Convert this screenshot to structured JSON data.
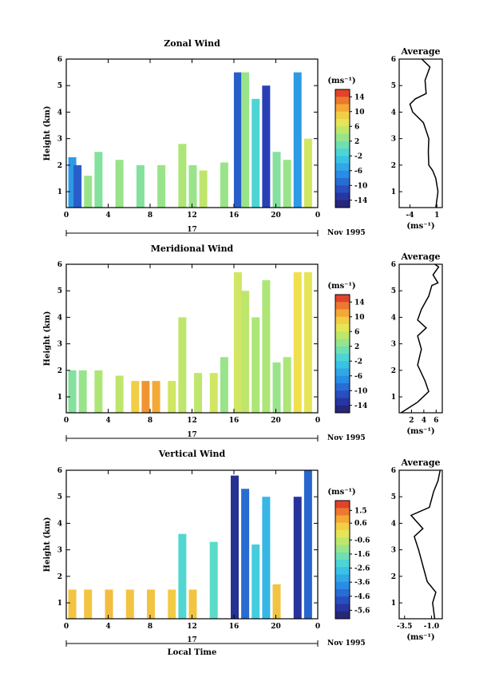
{
  "chart_data": [
    {
      "type": "heatmap",
      "title": "Zonal Wind",
      "ylabel": "Height (km)",
      "y_ticks": [
        "1",
        "2",
        "3",
        "4",
        "5",
        "6"
      ],
      "ylim": [
        0.4,
        6
      ],
      "x_ticks": [
        "0",
        "4",
        "8",
        "12",
        "16",
        "20",
        "0"
      ],
      "date_label": "17",
      "month_label": "Nov 1995",
      "colorbar": {
        "unit": "(ms⁻¹)",
        "ticks": [
          "14",
          "10",
          "6",
          "2",
          "-2",
          "-6",
          "-10",
          "-14"
        ],
        "range": [
          -16,
          16
        ]
      },
      "columns": [
        {
          "t": 0.5,
          "top": 2.3,
          "v": -6
        },
        {
          "t": 1.0,
          "top": 2.0,
          "v": -10
        },
        {
          "t": 2,
          "top": 1.6,
          "v": 3
        },
        {
          "t": 3,
          "top": 2.5,
          "v": 2
        },
        {
          "t": 5,
          "top": 2.2,
          "v": 3
        },
        {
          "t": 7,
          "top": 2.0,
          "v": 2
        },
        {
          "t": 9,
          "top": 2.0,
          "v": 3
        },
        {
          "t": 11,
          "top": 2.8,
          "v": 4
        },
        {
          "t": 12,
          "top": 2.0,
          "v": 3
        },
        {
          "t": 13,
          "top": 1.8,
          "v": 5
        },
        {
          "t": 15,
          "top": 2.1,
          "v": 3
        },
        {
          "t": 16.3,
          "top": 5.5,
          "v": -10
        },
        {
          "t": 17,
          "top": 5.5,
          "v": 3
        },
        {
          "t": 18,
          "top": 4.5,
          "v": -1
        },
        {
          "t": 19,
          "top": 5.0,
          "v": -12
        },
        {
          "t": 20,
          "top": 2.5,
          "v": 2
        },
        {
          "t": 21,
          "top": 2.2,
          "v": 3
        },
        {
          "t": 22,
          "top": 5.5,
          "v": -6
        },
        {
          "t": 23,
          "top": 3.0,
          "v": 6
        }
      ],
      "average_profile": {
        "title": "Average",
        "unit": "(ms⁻¹)",
        "x_ticks": [
          "-4",
          "1"
        ],
        "xlim": [
          -6,
          2
        ],
        "points": [
          [
            0.8,
            0.4
          ],
          [
            1.2,
            1.0
          ],
          [
            0.8,
            1.5
          ],
          [
            0.2,
            1.8
          ],
          [
            -0.5,
            2.0
          ],
          [
            -0.6,
            2.5
          ],
          [
            -0.5,
            3.0
          ],
          [
            -1.5,
            3.6
          ],
          [
            -3.5,
            4.0
          ],
          [
            -4.0,
            4.3
          ],
          [
            -3.0,
            4.5
          ],
          [
            -1.0,
            4.7
          ],
          [
            -1.2,
            5.2
          ],
          [
            -0.3,
            5.7
          ],
          [
            -1.8,
            6.0
          ]
        ]
      }
    },
    {
      "type": "heatmap",
      "title": "Meridional Wind",
      "ylabel": "Height (km)",
      "y_ticks": [
        "1",
        "2",
        "3",
        "4",
        "5",
        "6"
      ],
      "ylim": [
        0.4,
        6
      ],
      "x_ticks": [
        "0",
        "4",
        "8",
        "12",
        "16",
        "20",
        "0"
      ],
      "date_label": "17",
      "month_label": "Nov 1995",
      "colorbar": {
        "unit": "(ms⁻¹)",
        "ticks": [
          "14",
          "10",
          "6",
          "2",
          "-2",
          "-6",
          "-10",
          "-14"
        ],
        "range": [
          -16,
          16
        ]
      },
      "columns": [
        {
          "t": 0.5,
          "top": 2.0,
          "v": 2
        },
        {
          "t": 1.5,
          "top": 2.0,
          "v": 3
        },
        {
          "t": 3,
          "top": 2.0,
          "v": 4
        },
        {
          "t": 5,
          "top": 1.8,
          "v": 5
        },
        {
          "t": 6.5,
          "top": 1.6,
          "v": 9
        },
        {
          "t": 7.5,
          "top": 1.6,
          "v": 12
        },
        {
          "t": 8.5,
          "top": 1.6,
          "v": 11
        },
        {
          "t": 10,
          "top": 1.6,
          "v": 6
        },
        {
          "t": 11,
          "top": 4.0,
          "v": 5
        },
        {
          "t": 12.5,
          "top": 1.9,
          "v": 5
        },
        {
          "t": 14,
          "top": 1.9,
          "v": 6
        },
        {
          "t": 15,
          "top": 2.5,
          "v": 3
        },
        {
          "t": 16.3,
          "top": 5.7,
          "v": 6
        },
        {
          "t": 17,
          "top": 5.0,
          "v": 5
        },
        {
          "t": 18,
          "top": 4.0,
          "v": 4
        },
        {
          "t": 19,
          "top": 5.4,
          "v": 4
        },
        {
          "t": 20,
          "top": 2.3,
          "v": 3
        },
        {
          "t": 21,
          "top": 2.5,
          "v": 4
        },
        {
          "t": 22,
          "top": 5.7,
          "v": 8
        },
        {
          "t": 23,
          "top": 5.7,
          "v": 7
        }
      ],
      "average_profile": {
        "title": "Average",
        "unit": "(ms⁻¹)",
        "x_ticks": [
          "2",
          "4",
          "6"
        ],
        "xlim": [
          0,
          7
        ],
        "points": [
          [
            0.3,
            0.4
          ],
          [
            3.0,
            0.8
          ],
          [
            4.8,
            1.2
          ],
          [
            4.2,
            1.6
          ],
          [
            3.0,
            2.2
          ],
          [
            3.6,
            2.8
          ],
          [
            3.0,
            3.3
          ],
          [
            4.4,
            3.6
          ],
          [
            3.0,
            3.9
          ],
          [
            3.6,
            4.3
          ],
          [
            4.8,
            4.8
          ],
          [
            5.3,
            5.2
          ],
          [
            6.3,
            5.3
          ],
          [
            5.5,
            5.6
          ],
          [
            6.4,
            5.9
          ],
          [
            5.8,
            6.0
          ]
        ]
      }
    },
    {
      "type": "heatmap",
      "title": "Vertical Wind",
      "ylabel": "Height (km)",
      "y_ticks": [
        "1",
        "2",
        "3",
        "4",
        "5",
        "6"
      ],
      "ylim": [
        0.4,
        6
      ],
      "x_ticks": [
        "0",
        "4",
        "8",
        "12",
        "16",
        "20",
        "0"
      ],
      "date_label": "17",
      "month_label": "Nov 1995",
      "xlabel": "Local Time",
      "colorbar": {
        "unit": "(ms⁻¹)",
        "ticks": [
          "1.5",
          "0.6",
          "-0.6",
          "-1.6",
          "-2.6",
          "-3.6",
          "-4.6",
          "-5.6"
        ],
        "range": [
          -6.2,
          2.2
        ]
      },
      "columns": [
        {
          "t": 0.5,
          "top": 1.5,
          "v": 0.5
        },
        {
          "t": 2,
          "top": 1.5,
          "v": 0.5
        },
        {
          "t": 4,
          "top": 1.5,
          "v": 0.6
        },
        {
          "t": 6,
          "top": 1.5,
          "v": 0.5
        },
        {
          "t": 8,
          "top": 1.5,
          "v": 0.5
        },
        {
          "t": 10,
          "top": 1.5,
          "v": 0.4
        },
        {
          "t": 11,
          "top": 3.6,
          "v": -2.2
        },
        {
          "t": 12,
          "top": 1.5,
          "v": 0.5
        },
        {
          "t": 14,
          "top": 3.3,
          "v": -2.0
        },
        {
          "t": 16,
          "top": 5.8,
          "v": -5.6
        },
        {
          "t": 17,
          "top": 5.3,
          "v": -4.4
        },
        {
          "t": 18,
          "top": 3.2,
          "v": -2.5
        },
        {
          "t": 19,
          "top": 5.0,
          "v": -3.0
        },
        {
          "t": 20,
          "top": 1.7,
          "v": 0.5
        },
        {
          "t": 22,
          "top": 5.0,
          "v": -5.5
        },
        {
          "t": 23,
          "top": 6.0,
          "v": -4.5
        }
      ],
      "average_profile": {
        "title": "Average",
        "unit": "(ms⁻¹)",
        "x_ticks": [
          "-3.5",
          "-1.0"
        ],
        "xlim": [
          -4,
          0
        ],
        "points": [
          [
            -0.7,
            0.4
          ],
          [
            -0.9,
            1.0
          ],
          [
            -0.6,
            1.4
          ],
          [
            -1.4,
            1.8
          ],
          [
            -1.8,
            2.4
          ],
          [
            -2.2,
            3.0
          ],
          [
            -2.6,
            3.5
          ],
          [
            -1.8,
            3.8
          ],
          [
            -2.9,
            4.3
          ],
          [
            -1.2,
            4.6
          ],
          [
            -0.8,
            5.2
          ],
          [
            -0.4,
            5.6
          ],
          [
            -0.2,
            6.0
          ]
        ]
      }
    }
  ]
}
